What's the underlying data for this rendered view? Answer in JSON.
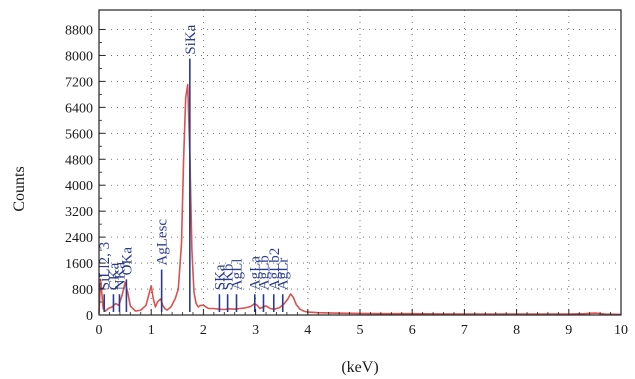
{
  "chart_data": {
    "type": "line",
    "title": "",
    "xlabel": "(keV)",
    "ylabel": "Counts",
    "xlim": [
      0,
      10
    ],
    "ylim": [
      0,
      9400
    ],
    "x_ticks": [
      "0",
      "1",
      "2",
      "3",
      "4",
      "5",
      "6",
      "7",
      "8",
      "9",
      "10"
    ],
    "y_ticks": [
      "0",
      "800",
      "1600",
      "2400",
      "3200",
      "4000",
      "4800",
      "5600",
      "6400",
      "7200",
      "8000",
      "8800"
    ],
    "grid": "dotted",
    "colors": {
      "spectrum": "#d9534f",
      "markers": "#2a3b8f"
    },
    "series": [
      {
        "x": [
          0.0,
          0.03,
          0.08,
          0.12,
          0.18,
          0.25,
          0.28,
          0.32,
          0.38,
          0.44,
          0.5,
          0.55,
          0.6,
          0.7,
          0.8,
          0.9,
          0.95,
          1.0,
          1.04,
          1.08,
          1.12,
          1.18,
          1.22,
          1.26,
          1.3,
          1.38,
          1.46,
          1.52,
          1.58,
          1.62,
          1.66,
          1.7,
          1.74,
          1.78,
          1.82,
          1.86,
          1.9,
          1.95,
          2.0,
          2.05,
          2.1,
          2.2,
          2.3,
          2.4,
          2.5,
          2.6,
          2.7,
          2.8,
          2.9,
          2.98,
          3.03,
          3.08,
          3.15,
          3.2,
          3.28,
          3.35,
          3.45,
          3.55,
          3.62,
          3.67,
          3.72,
          3.78,
          3.85,
          3.92,
          4.0,
          4.2,
          4.5,
          5.0,
          5.5,
          6.0,
          6.5,
          7.0,
          7.5,
          8.0,
          8.5,
          9.0,
          9.3,
          9.5,
          9.7,
          10.0
        ],
        "y": [
          50,
          1100,
          200,
          120,
          200,
          250,
          300,
          350,
          300,
          600,
          1000,
          700,
          280,
          120,
          150,
          300,
          600,
          900,
          500,
          250,
          400,
          500,
          300,
          200,
          150,
          250,
          500,
          800,
          2200,
          4800,
          6700,
          7100,
          5000,
          2000,
          700,
          350,
          250,
          300,
          300,
          250,
          200,
          200,
          180,
          170,
          190,
          180,
          200,
          220,
          260,
          350,
          300,
          200,
          250,
          280,
          200,
          180,
          220,
          350,
          500,
          650,
          550,
          320,
          180,
          120,
          90,
          70,
          60,
          50,
          40,
          40,
          35,
          30,
          30,
          30,
          30,
          30,
          40,
          60,
          30,
          20
        ]
      }
    ],
    "peaks": [
      {
        "label": "CKa",
        "x": 0.277,
        "label_ymax": 640
      },
      {
        "label": "NKa",
        "x": 0.392,
        "label_ymax": 640
      },
      {
        "label": "SiLl2, 3",
        "x": 0.1,
        "label_ymax": 640
      },
      {
        "label": "OKa",
        "x": 0.525,
        "label_ymax": 1100
      },
      {
        "label": "AgLesc",
        "x": 1.2,
        "label_ymax": 1400
      },
      {
        "label": "SiKa",
        "x": 1.74,
        "label_ymax": 7900
      },
      {
        "label": "SKa",
        "x": 2.307,
        "label_ymax": 640
      },
      {
        "label": "SKb",
        "x": 2.464,
        "label_ymax": 640
      },
      {
        "label": "AgLl",
        "x": 2.634,
        "label_ymax": 640
      },
      {
        "label": "AgLa",
        "x": 2.984,
        "label_ymax": 640
      },
      {
        "label": "AgLb",
        "x": 3.151,
        "label_ymax": 640
      },
      {
        "label": "AgLb2",
        "x": 3.348,
        "label_ymax": 640
      },
      {
        "label": "AgLr",
        "x": 3.52,
        "label_ymax": 640
      }
    ]
  }
}
